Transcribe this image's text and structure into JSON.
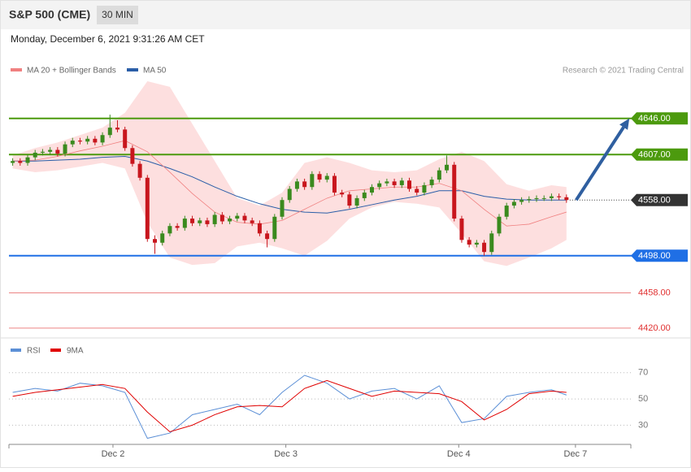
{
  "header": {
    "title": "S&P 500 (CME)",
    "timeframe": "30 MIN",
    "date": "Monday, December 6, 2021 9:31:26 AM CET",
    "source": "Research © 2021 Trading Central"
  },
  "chart_data": [
    {
      "type": "candlestick",
      "legend": [
        {
          "name": "MA 20 + Bollinger Bands",
          "color": "#f08080"
        },
        {
          "name": "MA 50",
          "color": "#2a5ea8"
        }
      ],
      "up_color": "#3a8a1e",
      "down_color": "#c8161d",
      "xlim": [
        -0.5,
        82.6
      ],
      "ylim": [
        4412,
        4686
      ],
      "x": [
        0,
        1,
        2,
        3,
        4,
        5,
        6,
        7,
        8,
        9,
        10,
        11,
        12,
        13,
        14,
        15,
        16,
        17,
        18,
        19,
        20,
        21,
        22,
        23,
        24,
        25,
        26,
        27,
        28,
        29,
        30,
        31,
        32,
        33,
        34,
        35,
        36,
        37,
        38,
        39,
        40,
        41,
        42,
        43,
        44,
        45,
        46,
        47,
        48,
        49,
        50,
        51,
        52,
        53,
        54,
        55,
        56,
        57,
        58,
        59,
        60,
        61,
        62,
        63,
        64,
        65,
        66,
        67,
        68,
        69,
        70,
        71,
        72,
        73,
        74
      ],
      "open": [
        4598,
        4600,
        4598,
        4604,
        4609,
        4610,
        4612,
        4608,
        4618,
        4622,
        4621,
        4624,
        4620,
        4628,
        4636,
        4634,
        4614,
        4597,
        4582,
        4516,
        4512,
        4522,
        4530,
        4528,
        4538,
        4533,
        4536,
        4532,
        4542,
        4535,
        4538,
        4541,
        4536,
        4533,
        4522,
        4516,
        4540,
        4558,
        4570,
        4578,
        4572,
        4586,
        4580,
        4584,
        4566,
        4564,
        4552,
        4560,
        4566,
        4572,
        4576,
        4578,
        4574,
        4579,
        4570,
        4566,
        4574,
        4580,
        4590,
        4596,
        4538,
        4515,
        4510,
        4512,
        4502,
        4522,
        4540,
        4552,
        4556,
        4558,
        4559,
        4560,
        4560,
        4562,
        4561
      ],
      "high": [
        4603,
        4603,
        4607,
        4612,
        4613,
        4615,
        4615,
        4621,
        4625,
        4625,
        4627,
        4627,
        4631,
        4650,
        4644,
        4637,
        4617,
        4600,
        4585,
        4520,
        4525,
        4533,
        4533,
        4541,
        4541,
        4539,
        4539,
        4545,
        4545,
        4541,
        4544,
        4544,
        4539,
        4536,
        4525,
        4543,
        4561,
        4573,
        4581,
        4581,
        4589,
        4589,
        4587,
        4587,
        4569,
        4567,
        4563,
        4569,
        4575,
        4579,
        4581,
        4581,
        4582,
        4582,
        4573,
        4577,
        4583,
        4593,
        4606,
        4599,
        4541,
        4518,
        4515,
        4515,
        4525,
        4543,
        4555,
        4559,
        4561,
        4562,
        4563,
        4563,
        4565,
        4565,
        4564
      ],
      "low": [
        4595,
        4595,
        4595,
        4601,
        4606,
        4607,
        4605,
        4605,
        4615,
        4618,
        4618,
        4617,
        4617,
        4625,
        4631,
        4611,
        4594,
        4579,
        4513,
        4500,
        4509,
        4519,
        4525,
        4525,
        4530,
        4530,
        4529,
        4529,
        4532,
        4532,
        4535,
        4533,
        4530,
        4519,
        4507,
        4513,
        4537,
        4555,
        4567,
        4569,
        4569,
        4577,
        4577,
        4563,
        4561,
        4549,
        4549,
        4557,
        4563,
        4569,
        4573,
        4571,
        4571,
        4567,
        4563,
        4563,
        4571,
        4577,
        4587,
        4535,
        4512,
        4507,
        4507,
        4498,
        4499,
        4519,
        4537,
        4549,
        4553,
        4555,
        4556,
        4557,
        4557,
        4558,
        4555
      ],
      "close": [
        4600,
        4598,
        4604,
        4609,
        4610,
        4612,
        4608,
        4618,
        4622,
        4621,
        4624,
        4620,
        4628,
        4636,
        4634,
        4614,
        4597,
        4582,
        4516,
        4512,
        4522,
        4530,
        4528,
        4538,
        4533,
        4536,
        4532,
        4542,
        4535,
        4538,
        4541,
        4536,
        4533,
        4522,
        4516,
        4540,
        4558,
        4570,
        4578,
        4572,
        4586,
        4580,
        4584,
        4566,
        4564,
        4552,
        4560,
        4566,
        4572,
        4576,
        4578,
        4574,
        4579,
        4570,
        4566,
        4574,
        4580,
        4590,
        4596,
        4538,
        4515,
        4510,
        4512,
        4502,
        4522,
        4540,
        4552,
        4556,
        4558,
        4559,
        4560,
        4560,
        4562,
        4561,
        4558
      ],
      "indicator_x": [
        0,
        3,
        6,
        9,
        12,
        15,
        18,
        21,
        24,
        27,
        30,
        33,
        36,
        39,
        42,
        45,
        48,
        51,
        54,
        57,
        60,
        63,
        66,
        69,
        72,
        74
      ],
      "ma20": [
        4600,
        4601,
        4605,
        4611,
        4616,
        4622,
        4610,
        4588,
        4565,
        4545,
        4534,
        4532,
        4536,
        4548,
        4560,
        4568,
        4570,
        4572,
        4572,
        4576,
        4568,
        4548,
        4530,
        4532,
        4540,
        4545
      ],
      "ma50": [
        4600,
        4600,
        4601,
        4602,
        4604,
        4605,
        4600,
        4592,
        4583,
        4572,
        4562,
        4554,
        4548,
        4545,
        4544,
        4548,
        4553,
        4558,
        4562,
        4568,
        4568,
        4562,
        4559,
        4558,
        4558,
        4558
      ],
      "band_upper": [
        4606,
        4614,
        4620,
        4628,
        4636,
        4652,
        4686,
        4680,
        4640,
        4600,
        4560,
        4552,
        4566,
        4598,
        4604,
        4598,
        4590,
        4588,
        4590,
        4602,
        4610,
        4600,
        4575,
        4568,
        4574,
        4572
      ],
      "band_lower": [
        4592,
        4588,
        4590,
        4594,
        4598,
        4592,
        4534,
        4496,
        4488,
        4490,
        4508,
        4512,
        4506,
        4498,
        4514,
        4538,
        4550,
        4556,
        4554,
        4550,
        4522,
        4492,
        4487,
        4496,
        4506,
        4515
      ],
      "band_color": "#fdd9d9",
      "levels": [
        {
          "value": 4646,
          "label": "4646.00",
          "color": "#4c9a0e",
          "style": "tag"
        },
        {
          "value": 4607,
          "label": "4607.00",
          "color": "#4c9a0e",
          "style": "tag"
        },
        {
          "value": 4558,
          "label": "4558.00",
          "color": "#333333",
          "style": "tag-dotted"
        },
        {
          "value": 4498,
          "label": "4498.00",
          "color": "#1f6fe5",
          "style": "tag"
        },
        {
          "value": 4458,
          "label": "4458.00",
          "color": "#e03030",
          "style": "text"
        },
        {
          "value": 4420,
          "label": "4420.00",
          "color": "#e03030",
          "style": "text"
        }
      ],
      "projection": {
        "x": [
          75.3,
          82.4
        ],
        "y": [
          4558,
          4646
        ],
        "color": "#2f5fa0"
      }
    },
    {
      "type": "line",
      "ylim": [
        16,
        94
      ],
      "yticks": [
        70,
        50,
        30
      ],
      "grid": true,
      "xlim": [
        -0.5,
        82.6
      ],
      "xticks": [
        {
          "value": 13.4,
          "label": "Dec 2"
        },
        {
          "value": 36.5,
          "label": "Dec 3"
        },
        {
          "value": 59.6,
          "label": "Dec 4"
        },
        {
          "value": 75.2,
          "label": "Dec 7"
        }
      ],
      "x": [
        0,
        3,
        6,
        9,
        12,
        15,
        18,
        21,
        24,
        27,
        30,
        33,
        36,
        39,
        42,
        45,
        48,
        51,
        54,
        57,
        60,
        63,
        66,
        69,
        72,
        74
      ],
      "series": [
        {
          "name": "RSI",
          "color": "#5b8fd6",
          "values": [
            55,
            58,
            56,
            62,
            60,
            55,
            20,
            24,
            38,
            42,
            46,
            38,
            55,
            68,
            62,
            50,
            56,
            58,
            50,
            60,
            32,
            35,
            52,
            55,
            57,
            53
          ]
        },
        {
          "name": "9MA",
          "color": "#e00000",
          "values": [
            52,
            55,
            57,
            59,
            61,
            58,
            40,
            25,
            30,
            38,
            44,
            45,
            44,
            58,
            64,
            58,
            52,
            56,
            55,
            54,
            48,
            34,
            42,
            54,
            56,
            55
          ]
        }
      ]
    }
  ]
}
